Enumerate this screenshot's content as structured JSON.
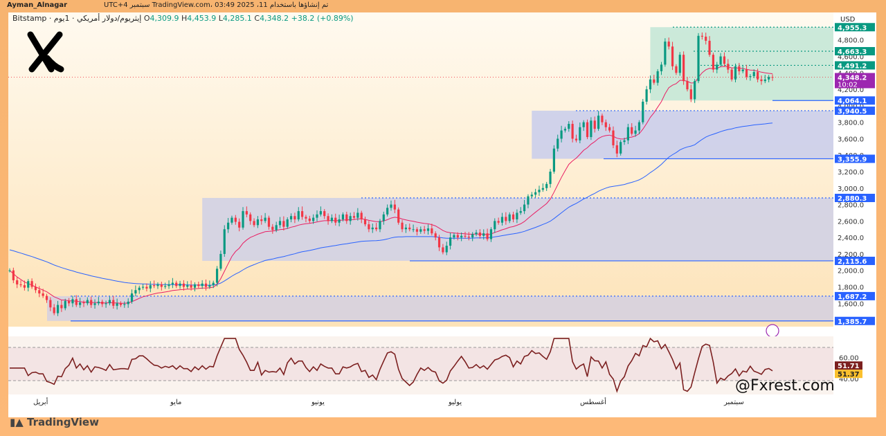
{
  "header": {
    "author": "Ayman_Alnagar",
    "published": "تم إنشاؤها باستخدام TradingView.com، 03:49 2025 ،11 سبتمبر UTC+4",
    "symbol": "إيثريوم/دولار أمريكي · 1يوم · Bitstamp",
    "open_label": "O",
    "open": "4,309.9",
    "high_label": "H",
    "high": "4,453.9",
    "low_label": "L",
    "low": "4,285.1",
    "close_label": "C",
    "close": "4,348.2",
    "change": "+38.2 (+0.89%)"
  },
  "axis": {
    "currency": "USD"
  },
  "price_ticks": [
    "4,800.0",
    "4,600.0",
    "4,400.0",
    "4,200.0",
    "4,000.0",
    "3,800.0",
    "3,600.0",
    "3,400.0",
    "3,200.0",
    "3,000.0",
    "2,800.0",
    "2,600.0",
    "2,400.0",
    "2,200.0",
    "2,000.0",
    "1,800.0",
    "1,600.0"
  ],
  "level_labels": [
    {
      "text": "4,955.3",
      "color": "#089981"
    },
    {
      "text": "4,663.3",
      "color": "#089981"
    },
    {
      "text": "4,491.2",
      "color": "#089981"
    },
    {
      "text": "4,064.1",
      "color": "#2962ff"
    },
    {
      "text": "3,940.5",
      "color": "#2962ff"
    },
    {
      "text": "3,355.9",
      "color": "#2962ff"
    },
    {
      "text": "2,880.3",
      "color": "#2962ff"
    },
    {
      "text": "2,115.6",
      "color": "#2962ff"
    },
    {
      "text": "1,687.2",
      "color": "#2962ff"
    },
    {
      "text": "1,385.7",
      "color": "#2962ff"
    }
  ],
  "last_price": {
    "price": "4,348.2",
    "countdown": "10:02",
    "color": "#9c27b0"
  },
  "rsi": {
    "ticks": [
      "60.00",
      "40.00"
    ],
    "value1": "51.71",
    "value2": "51.37"
  },
  "months": [
    "أبريل",
    "مايو",
    "يونيو",
    "يوليو",
    "أغسطس",
    "سبتمبر"
  ],
  "footer": {
    "brand": "TradingView"
  },
  "watermark": "@Fxrest.com",
  "colors": {
    "up": "#089981",
    "down": "#f23645",
    "ema_fast": "#e91e63",
    "ema_slow": "#2962ff",
    "rsi": "#7b1f1f",
    "zone": "#c8c8e6",
    "green_zone": "#c6e9dc"
  },
  "chart_data": {
    "type": "candlestick",
    "title": "",
    "ylim": [
      1350,
      5050
    ],
    "zones": [
      {
        "from": 1385.7,
        "to": 1687.2
      },
      {
        "from": 2115.6,
        "to": 2880.3
      },
      {
        "from": 3355.9,
        "to": 3940.5
      },
      {
        "from": 4064.1,
        "to": 4955.3
      }
    ],
    "levels": [
      4955.3,
      4663.3,
      4491.2,
      4064.1,
      3940.5,
      3355.9,
      2880.3,
      2115.6,
      1687.2,
      1385.7
    ],
    "close_series": [
      2000,
      1880,
      1830,
      1820,
      1790,
      1870,
      1800,
      1760,
      1720,
      1690,
      1640,
      1550,
      1480,
      1580,
      1540,
      1630,
      1600,
      1650,
      1580,
      1610,
      1600,
      1640,
      1580,
      1600,
      1620,
      1590,
      1600,
      1640,
      1570,
      1600,
      1580,
      1590,
      1620,
      1720,
      1760,
      1790,
      1800,
      1780,
      1820,
      1810,
      1830,
      1800,
      1810,
      1830,
      1850,
      1810,
      1840,
      1800,
      1820,
      1790,
      1830,
      1810,
      1840,
      1800,
      1820,
      1850,
      2020,
      2200,
      2500,
      2580,
      2640,
      2590,
      2520,
      2720,
      2680,
      2600,
      2550,
      2620,
      2600,
      2640,
      2530,
      2490,
      2550,
      2600,
      2530,
      2620,
      2660,
      2620,
      2720,
      2650,
      2630,
      2600,
      2640,
      2680,
      2720,
      2660,
      2600,
      2640,
      2580,
      2620,
      2680,
      2600,
      2660,
      2640,
      2700,
      2620,
      2560,
      2500,
      2520,
      2500,
      2600,
      2680,
      2760,
      2800,
      2740,
      2580,
      2500,
      2520,
      2500,
      2500,
      2470,
      2500,
      2480,
      2510,
      2450,
      2400,
      2280,
      2220,
      2300,
      2400,
      2430,
      2400,
      2420,
      2410,
      2400,
      2440,
      2460,
      2420,
      2450,
      2380,
      2500,
      2600,
      2580,
      2650,
      2600,
      2680,
      2620,
      2700,
      2720,
      2800,
      2900,
      2920,
      2950,
      2980,
      3000,
      3050,
      3200,
      3480,
      3600,
      3700,
      3720,
      3780,
      3600,
      3580,
      3740,
      3800,
      3620,
      3820,
      3720,
      3880,
      3800,
      3740,
      3700,
      3520,
      3420,
      3560,
      3580,
      3740,
      3660,
      3700,
      3800,
      4050,
      4200,
      4320,
      4280,
      4420,
      4500,
      4780,
      4720,
      4480,
      4400,
      4620,
      4300,
      4200,
      4080,
      4300,
      4850,
      4840,
      4790,
      4620,
      4440,
      4500,
      4600,
      4510,
      4440,
      4320,
      4480,
      4420,
      4440,
      4350,
      4360,
      4410,
      4320,
      4300,
      4320,
      4350,
      4348
    ],
    "ema_fast": [
      2000,
      1960,
      1920,
      1890,
      1860,
      1840,
      1820,
      1800,
      1780,
      1760,
      1740,
      1710,
      1680,
      1660,
      1640,
      1640,
      1630,
      1630,
      1625,
      1620,
      1615,
      1615,
      1610,
      1610,
      1610,
      1605,
      1605,
      1610,
      1605,
      1605,
      1600,
      1600,
      1605,
      1620,
      1640,
      1660,
      1680,
      1690,
      1705,
      1715,
      1725,
      1730,
      1738,
      1745,
      1755,
      1760,
      1765,
      1768,
      1772,
      1772,
      1776,
      1780,
      1785,
      1786,
      1790,
      1796,
      1830,
      1900,
      1990,
      2080,
      2170,
      2230,
      2270,
      2330,
      2370,
      2400,
      2420,
      2440,
      2455,
      2470,
      2475,
      2478,
      2486,
      2495,
      2500,
      2510,
      2525,
      2535,
      2550,
      2560,
      2568,
      2572,
      2580,
      2588,
      2598,
      2604,
      2604,
      2606,
      2604,
      2606,
      2612,
      2612,
      2616,
      2618,
      2626,
      2626,
      2620,
      2608,
      2600,
      2592,
      2592,
      2600,
      2616,
      2636,
      2646,
      2640,
      2624,
      2614,
      2604,
      2596,
      2586,
      2578,
      2570,
      2566,
      2556,
      2540,
      2514,
      2484,
      2466,
      2458,
      2455,
      2450,
      2448,
      2444,
      2440,
      2440,
      2442,
      2440,
      2441,
      2434,
      2442,
      2462,
      2476,
      2494,
      2506,
      2524,
      2532,
      2548,
      2566,
      2594,
      2632,
      2670,
      2706,
      2742,
      2776,
      2812,
      2866,
      2950,
      3040,
      3130,
      3210,
      3288,
      3330,
      3364,
      3410,
      3460,
      3490,
      3534,
      3564,
      3604,
      3626,
      3638,
      3644,
      3630,
      3606,
      3598,
      3596,
      3614,
      3620,
      3634,
      3660,
      3716,
      3784,
      3860,
      3916,
      3984,
      4050,
      4146,
      4220,
      4250,
      4270,
      4310,
      4308,
      4298,
      4276,
      4280,
      4346,
      4402,
      4438,
      4456,
      4448,
      4456,
      4474,
      4478,
      4474,
      4460,
      4462,
      4456,
      4454,
      4442,
      4434,
      4432,
      4420,
      4408,
      4400,
      4394,
      4390
    ],
    "ema_slow": [
      2250,
      2238,
      2224,
      2210,
      2196,
      2182,
      2168,
      2152,
      2136,
      2120,
      2104,
      2086,
      2066,
      2050,
      2034,
      2020,
      2006,
      1994,
      1980,
      1968,
      1956,
      1946,
      1934,
      1924,
      1914,
      1904,
      1896,
      1888,
      1878,
      1870,
      1862,
      1854,
      1848,
      1844,
      1840,
      1838,
      1836,
      1834,
      1832,
      1830,
      1830,
      1828,
      1828,
      1828,
      1828,
      1826,
      1826,
      1824,
      1824,
      1822,
      1822,
      1822,
      1822,
      1820,
      1820,
      1822,
      1830,
      1846,
      1872,
      1900,
      1930,
      1956,
      1978,
      2006,
      2032,
      2052,
      2070,
      2088,
      2104,
      2120,
      2130,
      2138,
      2150,
      2160,
      2168,
      2180,
      2192,
      2202,
      2216,
      2226,
      2234,
      2242,
      2252,
      2262,
      2274,
      2282,
      2288,
      2296,
      2302,
      2310,
      2318,
      2324,
      2332,
      2338,
      2346,
      2352,
      2356,
      2358,
      2360,
      2362,
      2366,
      2372,
      2382,
      2394,
      2404,
      2408,
      2408,
      2410,
      2410,
      2410,
      2410,
      2410,
      2410,
      2410,
      2410,
      2408,
      2402,
      2394,
      2390,
      2390,
      2390,
      2390,
      2390,
      2390,
      2390,
      2392,
      2394,
      2394,
      2396,
      2396,
      2400,
      2408,
      2414,
      2422,
      2430,
      2438,
      2444,
      2452,
      2462,
      2474,
      2490,
      2506,
      2522,
      2540,
      2558,
      2576,
      2598,
      2630,
      2664,
      2700,
      2734,
      2768,
      2792,
      2814,
      2840,
      2868,
      2888,
      2914,
      2936,
      2962,
      2982,
      3000,
      3014,
      3022,
      3028,
      3036,
      3044,
      3058,
      3070,
      3084,
      3100,
      3124,
      3154,
      3188,
      3218,
      3252,
      3288,
      3334,
      3376,
      3406,
      3432,
      3464,
      3484,
      3500,
      3510,
      3526,
      3560,
      3592,
      3620,
      3640,
      3654,
      3670,
      3686,
      3700,
      3712,
      3720,
      3732,
      3740,
      3748,
      3754,
      3760,
      3768,
      3772,
      3776,
      3780,
      3786,
      3790
    ]
  }
}
